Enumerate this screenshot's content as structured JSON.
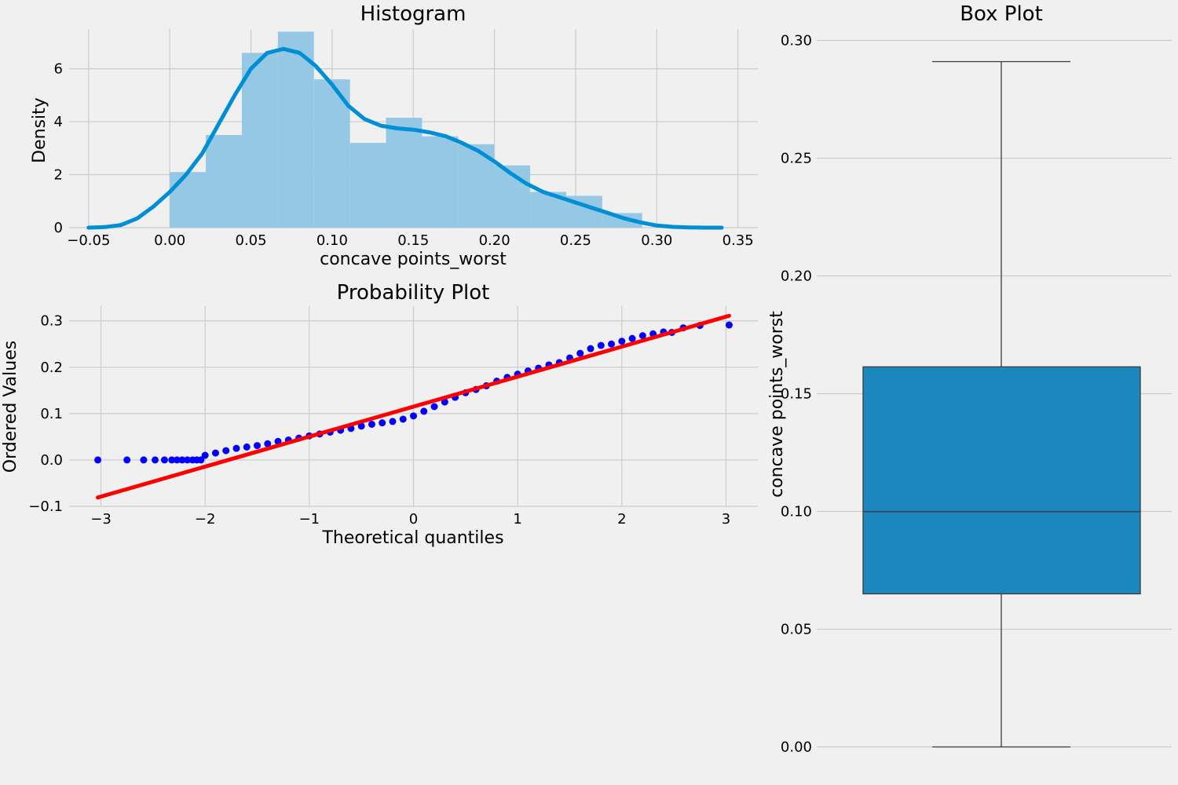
{
  "chart_data": [
    {
      "type": "bar",
      "title": "Histogram",
      "xlabel": "concave points_worst",
      "ylabel": "Density",
      "xlim": [
        -0.055,
        0.355
      ],
      "ylim": [
        0,
        7.5
      ],
      "xticks": [
        "−0.05",
        "0.00",
        "0.05",
        "0.10",
        "0.15",
        "0.20",
        "0.25",
        "0.30",
        "0.35"
      ],
      "yticks": [
        "0",
        "2",
        "4",
        "6"
      ],
      "grid": true,
      "colors": {
        "bars": "#8fc5e3",
        "kde": "#008fd5"
      },
      "bins": [
        {
          "x0": 0.0,
          "x1": 0.0222,
          "density": 2.1
        },
        {
          "x0": 0.0222,
          "x1": 0.0444,
          "density": 3.5
        },
        {
          "x0": 0.0444,
          "x1": 0.0666,
          "density": 6.6
        },
        {
          "x0": 0.0666,
          "x1": 0.0888,
          "density": 7.4
        },
        {
          "x0": 0.0888,
          "x1": 0.111,
          "density": 5.6
        },
        {
          "x0": 0.111,
          "x1": 0.1332,
          "density": 3.2
        },
        {
          "x0": 0.1332,
          "x1": 0.1554,
          "density": 4.15
        },
        {
          "x0": 0.1554,
          "x1": 0.1776,
          "density": 3.45
        },
        {
          "x0": 0.1776,
          "x1": 0.1998,
          "density": 3.15
        },
        {
          "x0": 0.1998,
          "x1": 0.222,
          "density": 2.35
        },
        {
          "x0": 0.222,
          "x1": 0.2442,
          "density": 1.35
        },
        {
          "x0": 0.2442,
          "x1": 0.2664,
          "density": 1.2
        },
        {
          "x0": 0.2664,
          "x1": 0.291,
          "density": 0.55
        }
      ],
      "kde": {
        "x": [
          -0.05,
          -0.04,
          -0.03,
          -0.02,
          -0.01,
          0.0,
          0.01,
          0.02,
          0.03,
          0.04,
          0.05,
          0.06,
          0.07,
          0.08,
          0.09,
          0.1,
          0.11,
          0.12,
          0.13,
          0.14,
          0.15,
          0.16,
          0.17,
          0.18,
          0.19,
          0.2,
          0.21,
          0.22,
          0.23,
          0.24,
          0.25,
          0.26,
          0.27,
          0.28,
          0.29,
          0.3,
          0.31,
          0.32,
          0.33,
          0.34
        ],
        "y": [
          0.0,
          0.02,
          0.1,
          0.35,
          0.8,
          1.35,
          2.0,
          2.8,
          3.9,
          5.0,
          6.0,
          6.6,
          6.75,
          6.6,
          6.1,
          5.4,
          4.6,
          4.1,
          3.85,
          3.75,
          3.7,
          3.6,
          3.45,
          3.2,
          2.9,
          2.5,
          2.05,
          1.65,
          1.35,
          1.15,
          0.95,
          0.75,
          0.55,
          0.35,
          0.2,
          0.08,
          0.03,
          0.01,
          0.0,
          0.0
        ]
      }
    },
    {
      "type": "scatter",
      "title": "Probability Plot",
      "xlabel": "Theoretical quantiles",
      "ylabel": "Ordered Values",
      "xlim": [
        -3.2,
        3.2
      ],
      "ylim": [
        -0.1,
        0.33
      ],
      "xticks": [
        "−3",
        "−2",
        "−1",
        "0",
        "1",
        "2",
        "3"
      ],
      "yticks": [
        "−0.1",
        "0.0",
        "0.1",
        "0.2",
        "0.3"
      ],
      "grid": true,
      "colors": {
        "points": "#0000ff",
        "fit": "#ff0000"
      },
      "points": {
        "x": [
          -3.03,
          -2.75,
          -2.59,
          -2.48,
          -2.39,
          -2.32,
          -2.27,
          -2.22,
          -2.17,
          -2.12,
          -2.08,
          -2.04,
          -2.0,
          -1.9,
          -1.8,
          -1.7,
          -1.6,
          -1.5,
          -1.4,
          -1.3,
          -1.2,
          -1.1,
          -1.0,
          -0.9,
          -0.8,
          -0.7,
          -0.6,
          -0.5,
          -0.4,
          -0.3,
          -0.2,
          -0.1,
          0.0,
          0.1,
          0.2,
          0.3,
          0.4,
          0.5,
          0.6,
          0.7,
          0.8,
          0.9,
          1.0,
          1.1,
          1.2,
          1.3,
          1.4,
          1.5,
          1.6,
          1.7,
          1.8,
          1.9,
          2.0,
          2.1,
          2.2,
          2.3,
          2.4,
          2.48,
          2.59,
          2.75,
          3.03
        ],
        "y": [
          0.0,
          0.0,
          0.0,
          0.0,
          0.0,
          0.0,
          0.0,
          0.0,
          0.0,
          0.0,
          0.0,
          0.0,
          0.01,
          0.015,
          0.02,
          0.025,
          0.028,
          0.031,
          0.035,
          0.04,
          0.043,
          0.047,
          0.052,
          0.056,
          0.06,
          0.064,
          0.068,
          0.073,
          0.077,
          0.08,
          0.083,
          0.088,
          0.095,
          0.105,
          0.115,
          0.125,
          0.135,
          0.145,
          0.152,
          0.16,
          0.17,
          0.178,
          0.185,
          0.192,
          0.198,
          0.205,
          0.21,
          0.22,
          0.23,
          0.24,
          0.247,
          0.25,
          0.256,
          0.262,
          0.268,
          0.272,
          0.276,
          0.275,
          0.285,
          0.29,
          0.291
        ]
      },
      "fit": {
        "x": [
          -3.03,
          3.03
        ],
        "y": [
          -0.081,
          0.311
        ]
      }
    },
    {
      "type": "box",
      "title": "Box Plot",
      "ylabel": "concave points_worst",
      "ylim": [
        -0.0065,
        0.3065
      ],
      "yticks": [
        "0.00",
        "0.05",
        "0.10",
        "0.15",
        "0.20",
        "0.25",
        "0.30"
      ],
      "grid": true,
      "colors": {
        "box": "#1b87bc"
      },
      "min": 0.0,
      "q1": 0.065,
      "median": 0.0999,
      "q3": 0.1614,
      "max": 0.291
    }
  ]
}
